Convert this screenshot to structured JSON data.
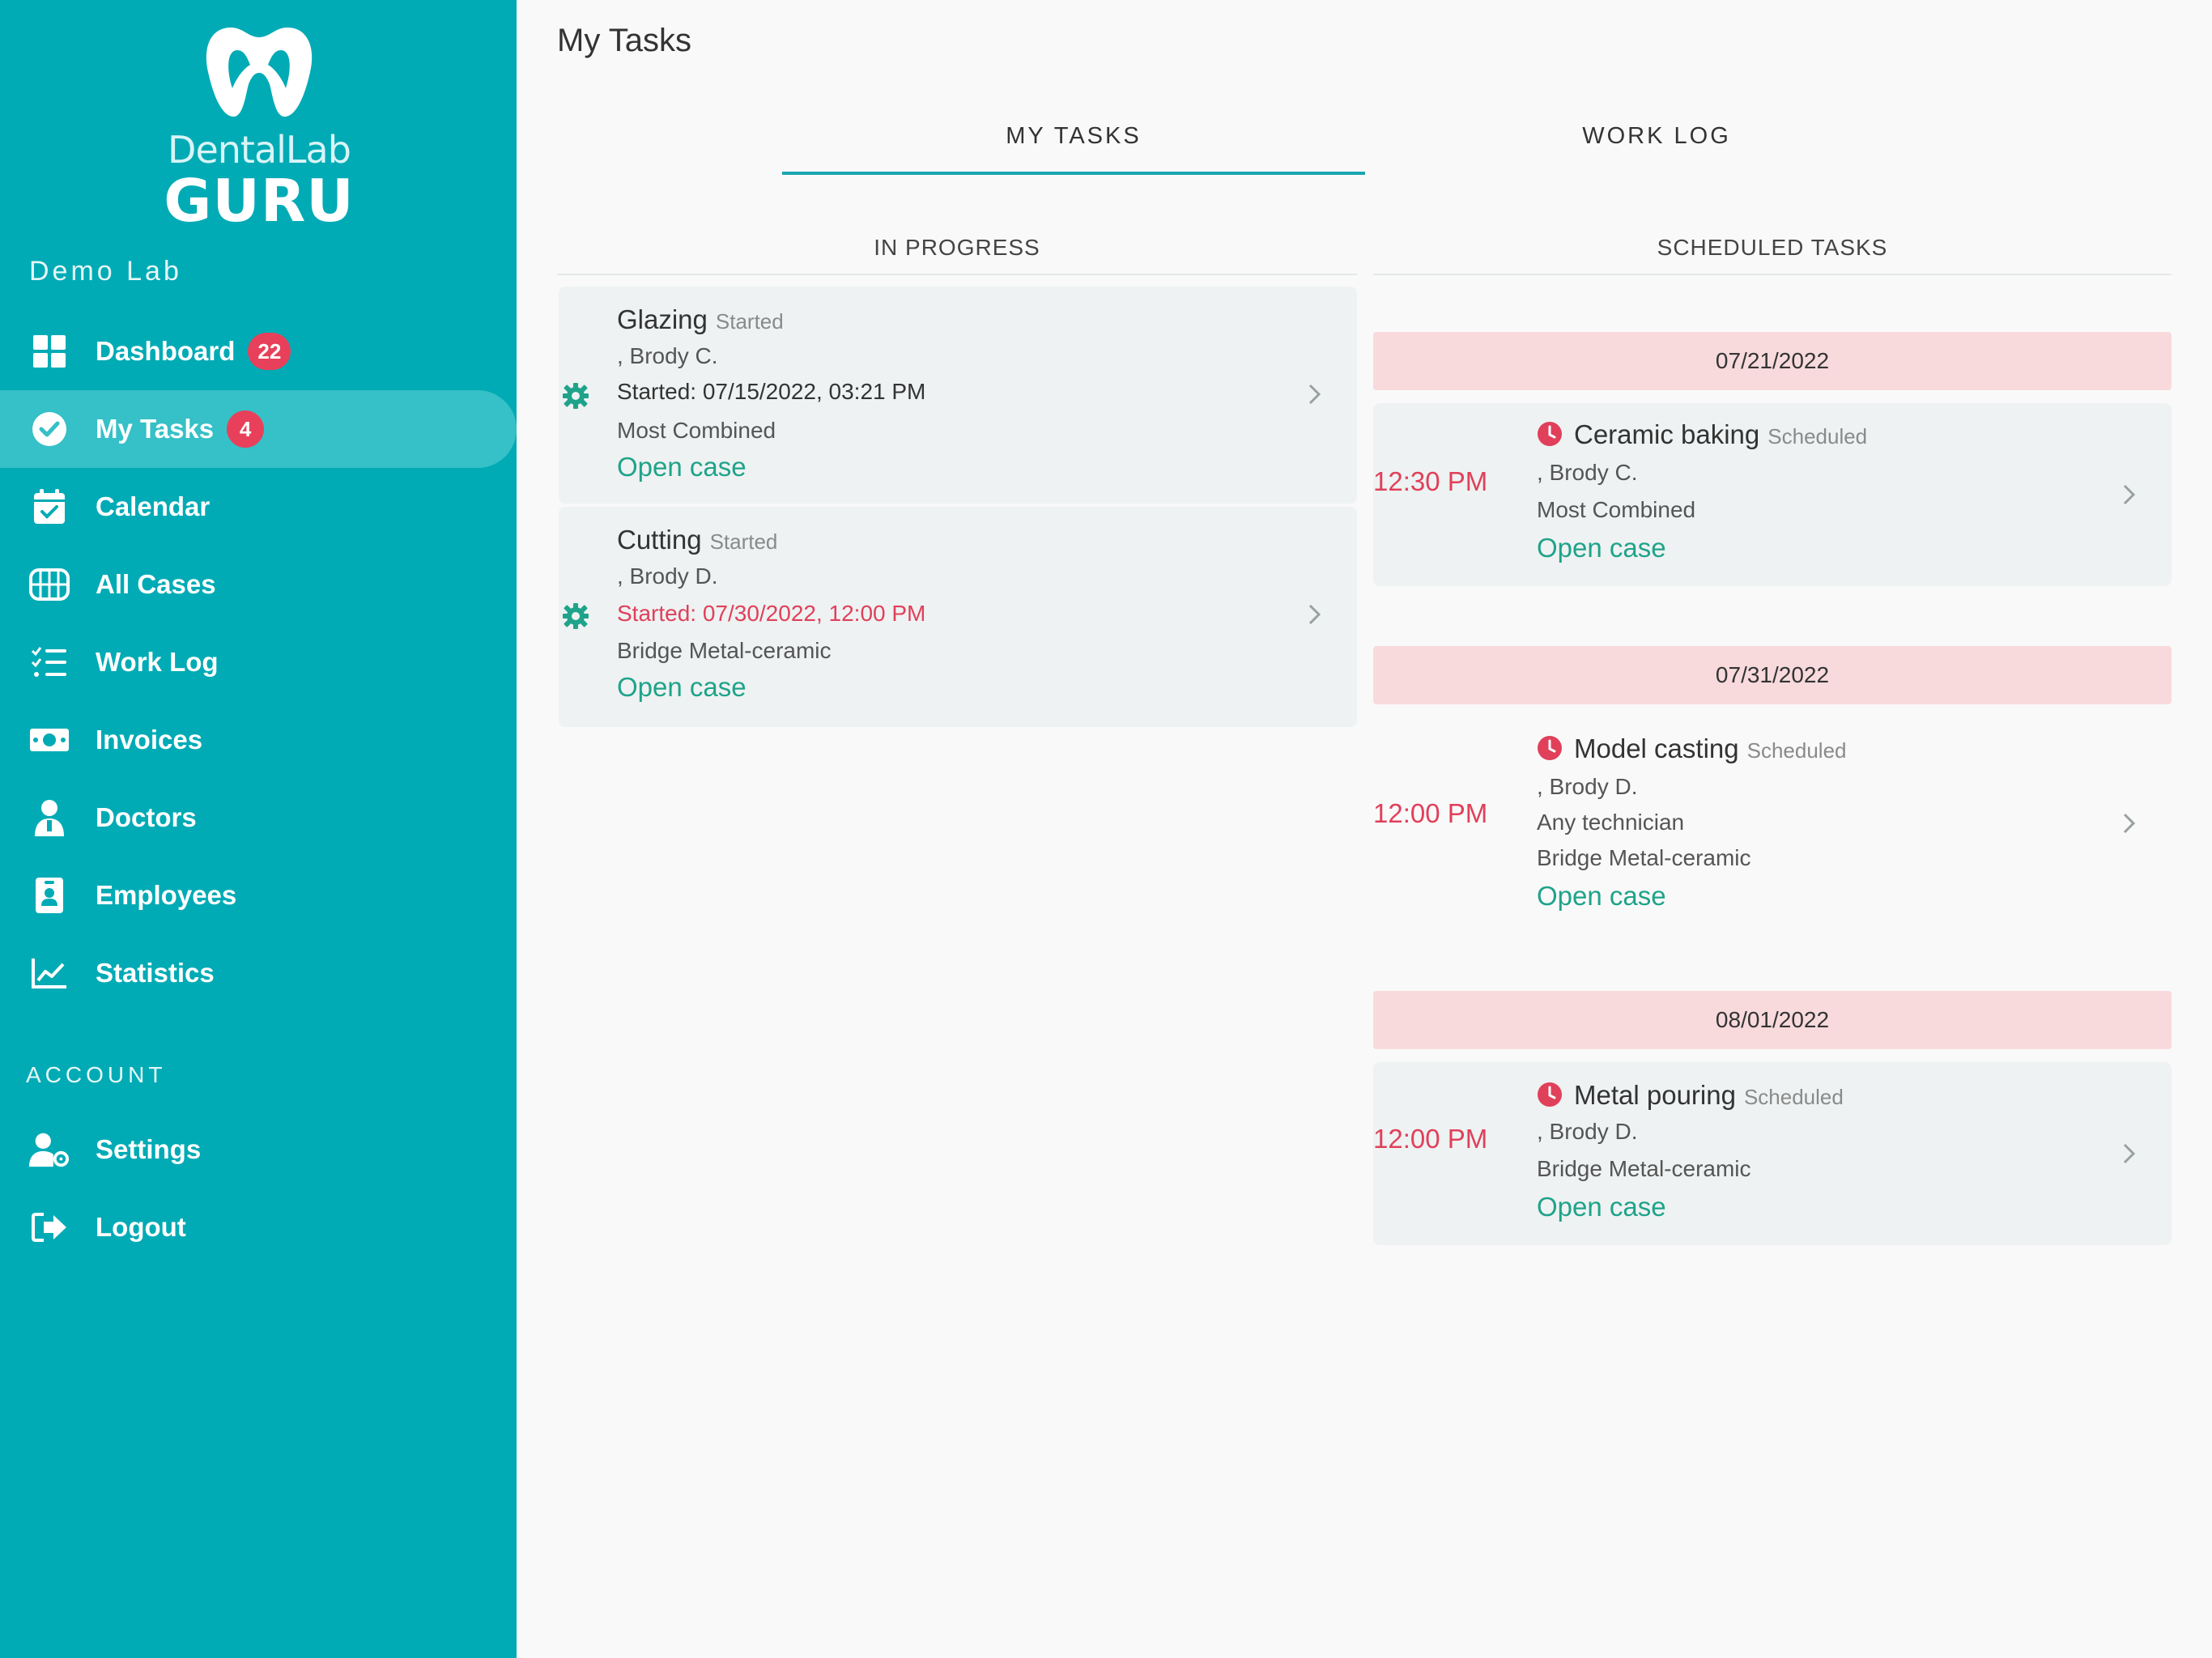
{
  "brand": {
    "line1": "DentalLab",
    "line2": "GURU"
  },
  "lab_name": "Demo Lab",
  "nav": [
    {
      "label": "Dashboard",
      "badge": "22",
      "icon": "grid-icon"
    },
    {
      "label": "My Tasks",
      "badge": "4",
      "icon": "check-circle-icon"
    },
    {
      "label": "Calendar",
      "icon": "calendar-check-icon"
    },
    {
      "label": "All Cases",
      "icon": "teeth-icon"
    },
    {
      "label": "Work Log",
      "icon": "list-check-icon"
    },
    {
      "label": "Invoices",
      "icon": "money-icon"
    },
    {
      "label": "Doctors",
      "icon": "doctor-icon"
    },
    {
      "label": "Employees",
      "icon": "id-badge-icon"
    },
    {
      "label": "Statistics",
      "icon": "chart-line-icon"
    }
  ],
  "account_label": "ACCOUNT",
  "account_nav": [
    {
      "label": "Settings",
      "icon": "user-gear-icon"
    },
    {
      "label": "Logout",
      "icon": "logout-icon"
    }
  ],
  "page_title": "My Tasks",
  "tabs": [
    "MY TASKS",
    "WORK LOG"
  ],
  "columns": {
    "left": "IN PROGRESS",
    "right": "SCHEDULED TASKS"
  },
  "in_progress": [
    {
      "title": "Glazing",
      "status": "Started",
      "person": ", Brody C.",
      "started": "Started: 07/15/2022, 03:21 PM",
      "product": "Most Combined",
      "link": "Open case"
    },
    {
      "title": "Cutting",
      "status": "Started",
      "person": ", Brody D.",
      "started": "Started: 07/30/2022, 12:00 PM",
      "product": "Bridge Metal-ceramic",
      "link": "Open case"
    }
  ],
  "scheduled": [
    {
      "date": "07/21/2022",
      "time": "12:30 PM",
      "title": "Ceramic baking",
      "status": "Scheduled",
      "person": ", Brody C.",
      "product": "Most Combined",
      "link": "Open case"
    },
    {
      "date": "07/31/2022",
      "time": "12:00 PM",
      "title": "Model casting",
      "status": "Scheduled",
      "person": ", Brody D.",
      "technician": "Any technician",
      "product": "Bridge Metal-ceramic",
      "link": "Open case"
    },
    {
      "date": "08/01/2022",
      "time": "12:00 PM",
      "title": "Metal pouring",
      "status": "Scheduled",
      "person": ", Brody D.",
      "product": "Bridge Metal-ceramic",
      "link": "Open case"
    }
  ],
  "colors": {
    "sidebar": "#00abb5",
    "accent": "#1aa6b1",
    "green_link": "#1fa38a",
    "alert_red": "#e0405a",
    "date_bar": "#f8dadd"
  }
}
